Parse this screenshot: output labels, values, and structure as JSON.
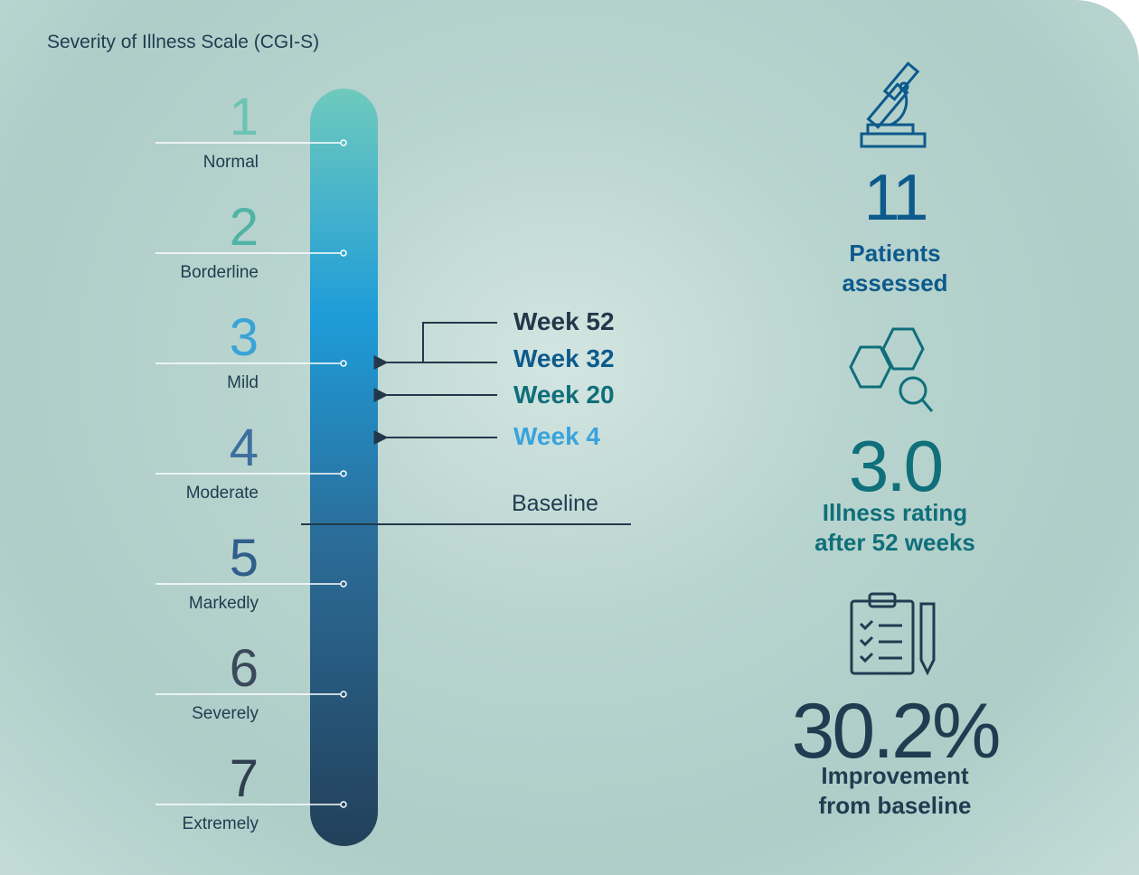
{
  "title": "Severity of Illness Scale (CGI-S)",
  "scale": [
    {
      "number": "1",
      "label": "Normal"
    },
    {
      "number": "2",
      "label": "Borderline"
    },
    {
      "number": "3",
      "label": "Mild"
    },
    {
      "number": "4",
      "label": "Moderate"
    },
    {
      "number": "5",
      "label": "Markedly"
    },
    {
      "number": "6",
      "label": "Severely"
    },
    {
      "number": "7",
      "label": "Extremely"
    }
  ],
  "markers": [
    "Week 52",
    "Week 32",
    "Week 20",
    "Week 4"
  ],
  "baseline": "Baseline",
  "stats": [
    {
      "value": "11",
      "label": [
        "Patients",
        "assessed"
      ]
    },
    {
      "value": "3.0",
      "label": [
        "Illness rating",
        "after 52 weeks"
      ]
    },
    {
      "value": "30.2%",
      "label": [
        "Improvement",
        "from baseline"
      ]
    }
  ]
}
